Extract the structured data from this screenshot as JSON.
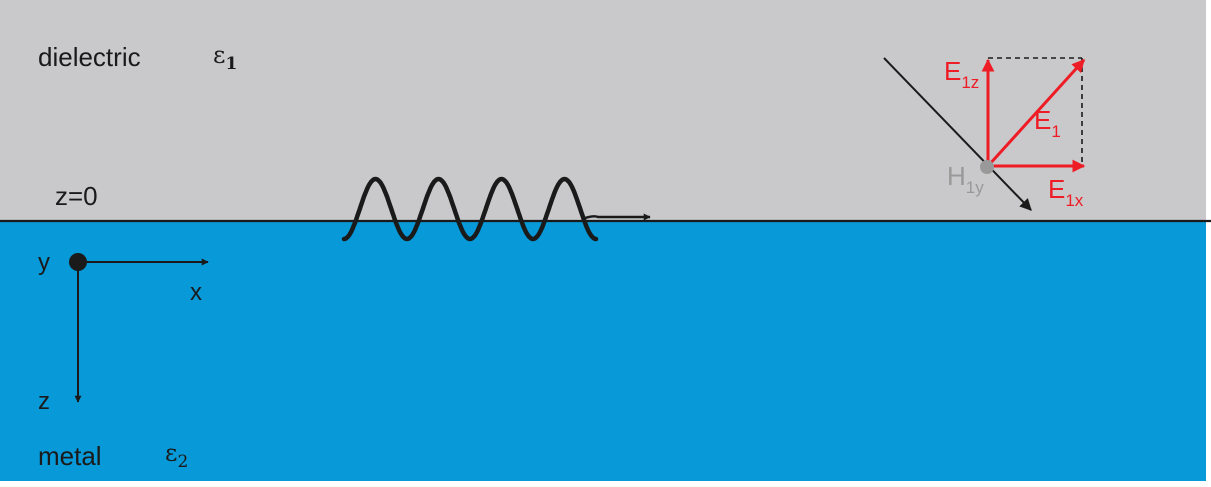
{
  "regions": {
    "upper": {
      "label": "dielectric",
      "symbol": "ε",
      "symbol_sub": "1",
      "color": "#c9c9cb"
    },
    "lower": {
      "label": "metal",
      "symbol": "ε",
      "symbol_sub": "2",
      "color": "#0899d8"
    }
  },
  "interface": {
    "label": "z=0",
    "line_color": "#1a1a1a"
  },
  "axes": {
    "y_label": "y",
    "x_label": "x",
    "z_label": "z"
  },
  "field_vectors": {
    "e1": {
      "main": "E",
      "sub": "1"
    },
    "e1z": {
      "main": "E",
      "sub": "1z"
    },
    "e1x": {
      "main": "E",
      "sub": "1x"
    },
    "h1y": {
      "main": "H",
      "sub": "1y"
    },
    "e_color": "#ee1c25",
    "h_color": "#999999"
  }
}
